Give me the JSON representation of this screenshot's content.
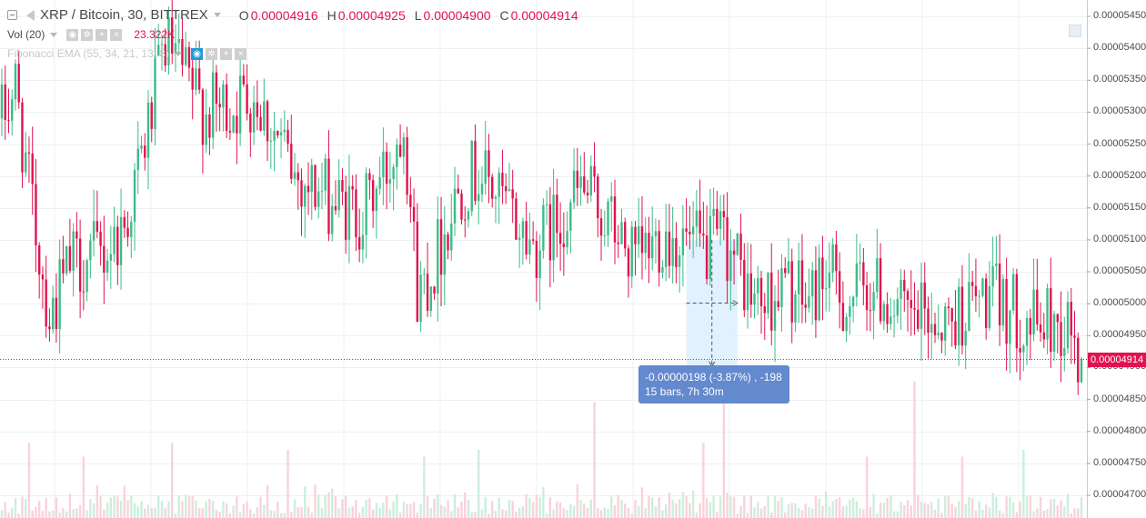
{
  "header": {
    "symbol": "XRP / Bitcoin, 30, BITTREX",
    "ohlc": [
      {
        "key": "O",
        "value": "0.00004916"
      },
      {
        "key": "H",
        "value": "0.00004925"
      },
      {
        "key": "L",
        "value": "0.00004900"
      },
      {
        "key": "C",
        "value": "0.00004914"
      }
    ],
    "volume_label": "Vol (20)",
    "volume_value": "23.322K",
    "indicator_label": "Fibonacci EMA (55, 34, 21, 13, 8)"
  },
  "measure_tooltip": {
    "line1": "-0.00000198 (-3.87%) , -198",
    "line2": "15 bars, 7h 30m"
  },
  "last_price": "0.00004914",
  "colors": {
    "up": "#3cbc89",
    "down": "#e0134f",
    "grid": "#eef0f3",
    "measure": "#ddeeff",
    "tooltip": "#6389ce"
  },
  "chart_data": {
    "type": "candlestick",
    "title": "XRP / Bitcoin, 30, BITTREX",
    "ylim": [
      4.65e-05,
      5.47e-05
    ],
    "ticks": [
      "0.00005450",
      "0.00005400",
      "0.00005350",
      "0.00005300",
      "0.00005250",
      "0.00005200",
      "0.00005150",
      "0.00005100",
      "0.00005050",
      "0.00005000",
      "0.00004950",
      "0.00004900",
      "0.00004850",
      "0.00004800",
      "0.00004750",
      "0.00004700"
    ],
    "grid": true,
    "anchors": [
      [
        0,
        5.29e-05
      ],
      [
        4,
        5.34e-05
      ],
      [
        8,
        5.18e-05
      ],
      [
        14,
        4.98e-05
      ],
      [
        20,
        5.06e-05
      ],
      [
        30,
        5.08e-05
      ],
      [
        36,
        5.12e-05
      ],
      [
        42,
        5.25e-05
      ],
      [
        48,
        5.41e-05
      ],
      [
        54,
        5.35e-05
      ],
      [
        60,
        5.3e-05
      ],
      [
        68,
        5.31e-05
      ],
      [
        74,
        5.33e-05
      ],
      [
        80,
        5.27e-05
      ],
      [
        86,
        5.2e-05
      ],
      [
        92,
        5.18e-05
      ],
      [
        100,
        5.15e-05
      ],
      [
        106,
        5.14e-05
      ],
      [
        114,
        5.22e-05
      ],
      [
        118,
        5.3e-05
      ],
      [
        122,
        5.02e-05
      ],
      [
        126,
        5.05e-05
      ],
      [
        134,
        5.18e-05
      ],
      [
        140,
        5.21e-05
      ],
      [
        148,
        5.15e-05
      ],
      [
        156,
        5.09e-05
      ],
      [
        162,
        5.12e-05
      ],
      [
        170,
        5.18e-05
      ],
      [
        178,
        5.13e-05
      ],
      [
        186,
        5.06e-05
      ],
      [
        194,
        5.11e-05
      ],
      [
        200,
        5.1e-05
      ],
      [
        206,
        5.08e-05
      ],
      [
        212,
        5.1e-05
      ],
      [
        216,
        5.06e-05
      ],
      [
        220,
        5.01e-05
      ],
      [
        224,
        5e-05
      ],
      [
        230,
        5.03e-05
      ],
      [
        236,
        5e-05
      ],
      [
        242,
        5.05e-05
      ],
      [
        248,
        5e-05
      ],
      [
        254,
        5.03e-05
      ],
      [
        260,
        5.01e-05
      ],
      [
        266,
        4.97e-05
      ],
      [
        272,
        4.98e-05
      ],
      [
        278,
        4.97e-05
      ],
      [
        284,
        5e-05
      ],
      [
        290,
        5.01e-05
      ],
      [
        296,
        4.99e-05
      ],
      [
        302,
        4.97e-05
      ],
      [
        308,
        4.97e-05
      ],
      [
        314,
        4.96e-05
      ],
      [
        316,
        4.91e-05
      ]
    ],
    "volume_spikes": [
      [
        8,
        0.55
      ],
      [
        24,
        0.45
      ],
      [
        50,
        0.55
      ],
      [
        84,
        0.5
      ],
      [
        124,
        0.45
      ],
      [
        140,
        0.5
      ],
      [
        174,
        0.85
      ],
      [
        206,
        0.55
      ],
      [
        212,
        0.9
      ],
      [
        254,
        0.45
      ],
      [
        268,
        1.0
      ],
      [
        282,
        0.45
      ],
      [
        300,
        0.5
      ]
    ],
    "current_price": 4.914e-05,
    "measure": {
      "start_index": 201,
      "end_index": 216,
      "start_price": 5.1e-05,
      "end_price": 4.902e-05
    }
  }
}
